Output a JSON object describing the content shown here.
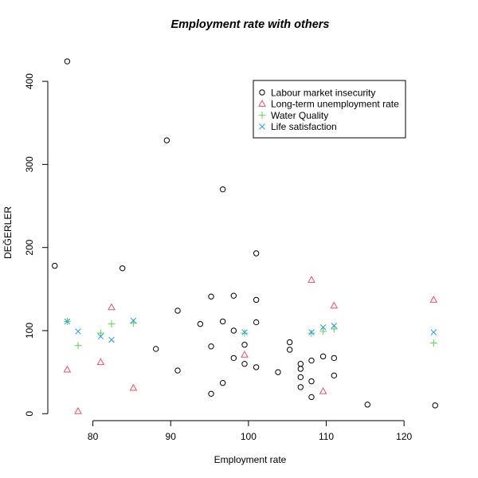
{
  "chart_data": {
    "type": "scatter",
    "title": "Employment rate with others",
    "xlabel": "Employment rate",
    "ylabel": "DEĞERLER",
    "xlim": [
      74.5,
      124.5
    ],
    "ylim": [
      0,
      425
    ],
    "x_ticks": [
      80,
      90,
      100,
      110,
      120
    ],
    "y_ticks": [
      0,
      100,
      200,
      300,
      400
    ],
    "grid": false,
    "legend_position": "top-right",
    "series": [
      {
        "name": "Labour market insecurity",
        "marker": "circle",
        "color": "#000000",
        "points": [
          [
            76.7,
            424
          ],
          [
            75.1,
            178
          ],
          [
            83.8,
            175
          ],
          [
            89.5,
            329
          ],
          [
            96.7,
            270
          ],
          [
            90.9,
            124
          ],
          [
            88.1,
            78
          ],
          [
            90.9,
            52
          ],
          [
            93.8,
            108
          ],
          [
            95.2,
            141
          ],
          [
            95.2,
            81
          ],
          [
            95.2,
            24
          ],
          [
            96.7,
            111
          ],
          [
            96.7,
            37
          ],
          [
            98.1,
            142
          ],
          [
            98.1,
            100
          ],
          [
            98.1,
            67
          ],
          [
            99.5,
            83
          ],
          [
            99.5,
            60
          ],
          [
            101.0,
            193
          ],
          [
            101.0,
            137
          ],
          [
            101.0,
            110
          ],
          [
            101.0,
            56
          ],
          [
            103.8,
            50
          ],
          [
            105.3,
            86
          ],
          [
            105.3,
            77
          ],
          [
            106.7,
            60
          ],
          [
            106.7,
            54
          ],
          [
            106.7,
            44
          ],
          [
            106.7,
            32
          ],
          [
            108.1,
            64
          ],
          [
            108.1,
            39
          ],
          [
            108.1,
            20
          ],
          [
            109.6,
            69
          ],
          [
            111.0,
            67
          ],
          [
            111.0,
            46
          ],
          [
            115.3,
            11
          ],
          [
            124.0,
            10
          ]
        ]
      },
      {
        "name": "Long-term unemployment rate",
        "marker": "triangle",
        "color": "#DF536B",
        "points": [
          [
            76.7,
            53
          ],
          [
            78.1,
            3
          ],
          [
            81.0,
            62
          ],
          [
            82.4,
            128
          ],
          [
            85.2,
            31
          ],
          [
            99.5,
            71
          ],
          [
            108.1,
            161
          ],
          [
            109.6,
            27
          ],
          [
            111.0,
            130
          ],
          [
            123.8,
            137
          ]
        ]
      },
      {
        "name": "Water Quality",
        "marker": "plus",
        "color": "#61D04F",
        "points": [
          [
            76.7,
            111
          ],
          [
            78.1,
            82
          ],
          [
            81.0,
            97
          ],
          [
            82.4,
            108
          ],
          [
            85.2,
            109
          ],
          [
            99.5,
            97
          ],
          [
            108.1,
            97
          ],
          [
            109.6,
            99
          ],
          [
            111.0,
            102
          ],
          [
            123.8,
            85
          ]
        ]
      },
      {
        "name": "Life satisfaction",
        "marker": "x",
        "color": "#2297E6",
        "points": [
          [
            76.7,
            111
          ],
          [
            78.1,
            99
          ],
          [
            81.0,
            93
          ],
          [
            82.4,
            89
          ],
          [
            85.2,
            112
          ],
          [
            99.5,
            98
          ],
          [
            108.1,
            98
          ],
          [
            109.6,
            104
          ],
          [
            111.0,
            106
          ],
          [
            123.8,
            98
          ]
        ]
      }
    ]
  }
}
